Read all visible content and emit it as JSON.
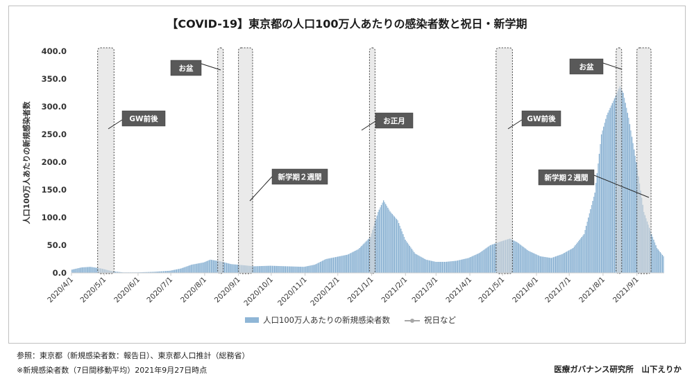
{
  "chart_data": {
    "type": "bar",
    "title": "【COVID-19】東京都の人口100万人あたりの感染者数と祝日・新学期",
    "ylabel": "人口100万人あたりの新規感染者数",
    "ylim": [
      0,
      400
    ],
    "y_ticks": [
      "0.0",
      "50.0",
      "100.0",
      "150.0",
      "200.0",
      "250.0",
      "300.0",
      "350.0",
      "400.0"
    ],
    "x_ticks": [
      "2020/4/1",
      "2020/5/1",
      "2020/6/1",
      "2020/7/1",
      "2020/8/1",
      "2020/9/1",
      "2020/10/1",
      "2020/11/1",
      "2020/12/1",
      "2021/1/1",
      "2021/2/1",
      "2021/3/1",
      "2021/4/1",
      "2021/5/1",
      "2021/6/1",
      "2021/7/1",
      "2021/8/1",
      "2021/9/1"
    ],
    "x_range": [
      "2020-04-01",
      "2021-09-26"
    ],
    "series": [
      {
        "name": "人口100万人あたりの新規感染者数",
        "kind": "bar",
        "color": "#8fb6d6",
        "points": [
          [
            "2020-04-01",
            6
          ],
          [
            "2020-04-10",
            10
          ],
          [
            "2020-04-18",
            11
          ],
          [
            "2020-04-28",
            8
          ],
          [
            "2020-05-08",
            3
          ],
          [
            "2020-05-18",
            1
          ],
          [
            "2020-05-31",
            1
          ],
          [
            "2020-06-15",
            2
          ],
          [
            "2020-06-30",
            4
          ],
          [
            "2020-07-10",
            8
          ],
          [
            "2020-07-20",
            15
          ],
          [
            "2020-07-31",
            19
          ],
          [
            "2020-08-06",
            24
          ],
          [
            "2020-08-15",
            21
          ],
          [
            "2020-08-25",
            16
          ],
          [
            "2020-09-05",
            14
          ],
          [
            "2020-09-15",
            12
          ],
          [
            "2020-09-30",
            13
          ],
          [
            "2020-10-15",
            12
          ],
          [
            "2020-10-31",
            11
          ],
          [
            "2020-11-10",
            15
          ],
          [
            "2020-11-20",
            25
          ],
          [
            "2020-11-30",
            29
          ],
          [
            "2020-12-10",
            33
          ],
          [
            "2020-12-20",
            43
          ],
          [
            "2020-12-31",
            65
          ],
          [
            "2021-01-07",
            110
          ],
          [
            "2021-01-12",
            131
          ],
          [
            "2021-01-18",
            111
          ],
          [
            "2021-01-25",
            95
          ],
          [
            "2021-02-01",
            60
          ],
          [
            "2021-02-10",
            35
          ],
          [
            "2021-02-20",
            24
          ],
          [
            "2021-03-01",
            20
          ],
          [
            "2021-03-10",
            20
          ],
          [
            "2021-03-20",
            22
          ],
          [
            "2021-03-31",
            27
          ],
          [
            "2021-04-10",
            36
          ],
          [
            "2021-04-20",
            50
          ],
          [
            "2021-04-30",
            57
          ],
          [
            "2021-05-08",
            62
          ],
          [
            "2021-05-15",
            55
          ],
          [
            "2021-05-25",
            40
          ],
          [
            "2021-06-05",
            30
          ],
          [
            "2021-06-15",
            27
          ],
          [
            "2021-06-25",
            34
          ],
          [
            "2021-07-05",
            45
          ],
          [
            "2021-07-15",
            70
          ],
          [
            "2021-07-25",
            145
          ],
          [
            "2021-07-31",
            250
          ],
          [
            "2021-08-05",
            285
          ],
          [
            "2021-08-12",
            315
          ],
          [
            "2021-08-17",
            337
          ],
          [
            "2021-08-20",
            325
          ],
          [
            "2021-08-25",
            280
          ],
          [
            "2021-09-01",
            200
          ],
          [
            "2021-09-08",
            110
          ],
          [
            "2021-09-15",
            70
          ],
          [
            "2021-09-20",
            45
          ],
          [
            "2021-09-26",
            30
          ]
        ]
      },
      {
        "name": "祝日など",
        "kind": "line-marker",
        "color": "#a6a6a6"
      }
    ],
    "holiday_periods": [
      {
        "label": "GW前後",
        "start": "2020-04-25",
        "end": "2020-05-10"
      },
      {
        "label": "お盆",
        "start": "2020-08-13",
        "end": "2020-08-16"
      },
      {
        "label": "新学期２週間",
        "start": "2020-09-01",
        "end": "2020-09-14"
      },
      {
        "label": "お正月",
        "start": "2020-12-30",
        "end": "2021-01-03"
      },
      {
        "label": "GW前後",
        "start": "2021-04-25",
        "end": "2021-05-10"
      },
      {
        "label": "お盆",
        "start": "2021-08-13",
        "end": "2021-08-16"
      },
      {
        "label": "新学期２週間",
        "start": "2021-09-01",
        "end": "2021-09-14"
      }
    ],
    "legend": {
      "placement": "bottom",
      "entries": [
        "人口100万人あたりの新規感染者数",
        "祝日など"
      ]
    },
    "grid": false
  },
  "notes": {
    "source": "参照：東京都（新規感染者数：報告日）、東京都人口推計（総務省）",
    "method": "※新規感染者数（7日間移動平均）2021年9月27日時点"
  },
  "credit": "医療ガバナンス研究所　山下えりか"
}
